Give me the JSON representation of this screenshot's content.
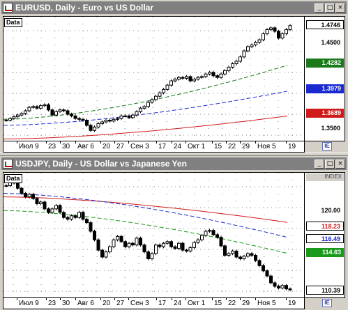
{
  "windows": [
    {
      "title": "EURUSD, Daily - Euro vs US Dollar",
      "data_label": "Data",
      "buttons": [
        "_",
        "□",
        "×"
      ],
      "price_labels": [
        {
          "text": "1.4746",
          "bg": "#ffffff",
          "fg": "#000000"
        },
        {
          "text": "1.4282",
          "bg": "#1a7a1a",
          "fg": "#ffffff"
        },
        {
          "text": "1.3979",
          "bg": "#1a2ad0",
          "fg": "#ffffff"
        },
        {
          "text": "1.3689",
          "bg": "#d01a1a",
          "fg": "#ffffff"
        }
      ],
      "tick_labels": [
        "1.4500",
        "1.3500"
      ],
      "x_labels": [
        "Июл 9",
        "23",
        "30",
        "Авг 6",
        "20",
        "27",
        "Сен 3",
        "17",
        "24",
        "Окт 1",
        "15",
        "22",
        "29",
        "Ноя 5",
        "19"
      ],
      "corner_button": "IE"
    },
    {
      "title": "USDJPY, Daily - US Dollar vs Japanese Yen",
      "data_label": "Data",
      "index_label": "INDEX",
      "buttons": [
        "_",
        "□",
        "×"
      ],
      "price_labels": [
        {
          "text": "118.23",
          "bg": "#ffffff",
          "fg": "#d01a1a"
        },
        {
          "text": "116.49",
          "bg": "#ffffff",
          "fg": "#1a2ad0"
        },
        {
          "text": "114.63",
          "bg": "#1a9a1a",
          "fg": "#ffffff"
        },
        {
          "text": "110.39",
          "bg": "#ffffff",
          "fg": "#000000"
        }
      ],
      "tick_labels": [
        "120.00"
      ],
      "x_labels": [
        "Июл 9",
        "23",
        "30",
        "Авг 6",
        "20",
        "27",
        "Сен 3",
        "17",
        "24",
        "Окт 1",
        "15",
        "22",
        "29",
        "Ноя 5",
        "19"
      ],
      "corner_button": "IE"
    }
  ],
  "chart_data": [
    {
      "type": "candlestick",
      "title": "EURUSD, Daily - Euro vs US Dollar",
      "ylim": [
        1.34,
        1.485
      ],
      "y_ticks": [
        1.45,
        1.35
      ],
      "last_price": 1.4746,
      "moving_averages": [
        {
          "color": "#1a7a1a",
          "style": "dashed",
          "last": 1.4282
        },
        {
          "color": "#1a2ad0",
          "style": "dashed",
          "last": 1.3979
        },
        {
          "color": "#d01a1a",
          "style": "solid",
          "last": 1.3689
        }
      ],
      "close_series": [
        1.364,
        1.366,
        1.368,
        1.37,
        1.372,
        1.375,
        1.379,
        1.38,
        1.378,
        1.381,
        1.382,
        1.376,
        1.37,
        1.374,
        1.376,
        1.375,
        1.371,
        1.369,
        1.366,
        1.365,
        1.364,
        1.358,
        1.352,
        1.356,
        1.36,
        1.362,
        1.364,
        1.363,
        1.365,
        1.366,
        1.369,
        1.369,
        1.367,
        1.37,
        1.374,
        1.378,
        1.38,
        1.385,
        1.388,
        1.392,
        1.396,
        1.4,
        1.405,
        1.41,
        1.412,
        1.414,
        1.413,
        1.415,
        1.41,
        1.412,
        1.414,
        1.415,
        1.418,
        1.42,
        1.416,
        1.414,
        1.418,
        1.422,
        1.426,
        1.43,
        1.433,
        1.438,
        1.445,
        1.45,
        1.452,
        1.455,
        1.458,
        1.465,
        1.47,
        1.472,
        1.468,
        1.46,
        1.465,
        1.47,
        1.4746
      ]
    },
    {
      "type": "candlestick",
      "title": "USDJPY, Daily - US Dollar vs Japanese Yen",
      "ylim": [
        109.5,
        124.0
      ],
      "y_ticks": [
        120.0
      ],
      "last_price": 110.39,
      "moving_averages": [
        {
          "color": "#d01a1a",
          "style": "solid",
          "last": 118.23
        },
        {
          "color": "#1a2ad0",
          "style": "dashed",
          "last": 116.49
        },
        {
          "color": "#1a9a1a",
          "style": "dashed",
          "last": 114.63
        }
      ],
      "close_series": [
        122.5,
        123.0,
        122.8,
        122.2,
        121.6,
        121.2,
        121.5,
        121.0,
        120.4,
        120.6,
        119.8,
        119.4,
        119.8,
        120.2,
        119.4,
        118.8,
        118.6,
        119.0,
        118.8,
        119.4,
        118.6,
        118.2,
        117.2,
        116.2,
        115.0,
        114.2,
        114.8,
        115.4,
        116.2,
        116.6,
        116.0,
        115.4,
        115.8,
        115.6,
        116.4,
        115.6,
        114.8,
        114.0,
        114.6,
        115.6,
        115.4,
        115.8,
        116.0,
        115.4,
        115.2,
        115.8,
        115.0,
        114.9,
        115.3,
        115.9,
        116.2,
        116.7,
        117.2,
        117.3,
        116.8,
        116.5,
        115.5,
        114.4,
        114.6,
        114.9,
        114.2,
        114.0,
        114.3,
        114.6,
        114.4,
        113.8,
        113.2,
        112.6,
        112.0,
        111.2,
        110.8,
        110.6,
        110.9,
        110.5,
        110.39
      ]
    }
  ]
}
